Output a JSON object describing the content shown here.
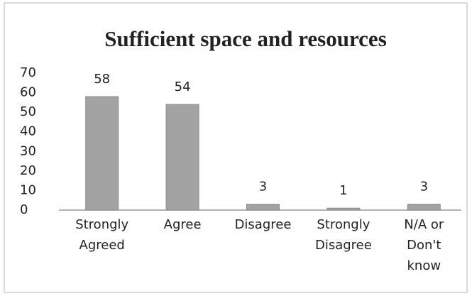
{
  "chart_data": {
    "type": "bar",
    "title": "Sufficient space and resources",
    "categories": [
      "Strongly Agreed",
      "Agree",
      "Disagree",
      "Strongly Disagree",
      "N/A or Don't know"
    ],
    "values": [
      58,
      54,
      3,
      1,
      3
    ],
    "color": "#a3a3a3",
    "ylim": [
      0,
      70
    ],
    "yticks": [
      0,
      10,
      20,
      30,
      40,
      50,
      60,
      70
    ],
    "grid": false
  }
}
